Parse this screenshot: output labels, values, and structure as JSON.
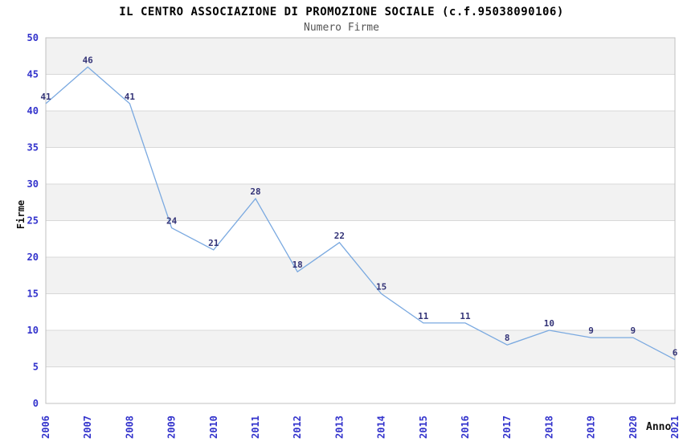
{
  "header": {
    "title": "IL CENTRO ASSOCIAZIONE DI PROMOZIONE SOCIALE (c.f.95038090106)",
    "subtitle": "Numero Firme"
  },
  "axes": {
    "y_title": "Firme",
    "x_title": "Anno"
  },
  "chart_data": {
    "type": "line",
    "title": "IL CENTRO ASSOCIAZIONE DI PROMOZIONE SOCIALE (c.f.95038090106)",
    "subtitle": "Numero Firme",
    "xlabel": "Anno",
    "ylabel": "Firme",
    "categories": [
      "2006",
      "2007",
      "2008",
      "2009",
      "2010",
      "2011",
      "2012",
      "2013",
      "2014",
      "2015",
      "2016",
      "2017",
      "2018",
      "2019",
      "2020",
      "2021"
    ],
    "values": [
      41,
      46,
      41,
      24,
      21,
      28,
      18,
      22,
      15,
      11,
      11,
      8,
      10,
      9,
      9,
      6
    ],
    "ylim": [
      0,
      50
    ],
    "ytick_step": 5,
    "grid": "horizontal, alternating shaded bands every 5 units (shaded band at top 45-50)",
    "legend": "none",
    "data_labels": true
  },
  "colors": {
    "series_line": "#7aa9e0",
    "data_label": "#333377",
    "tick_label": "#3333cc",
    "band_fill": "#f2f2f2",
    "gridline": "#d8d8d8",
    "plot_border": "#c0c0c0",
    "title": "#000000",
    "subtitle": "#555555",
    "axis_title": "#111111"
  }
}
